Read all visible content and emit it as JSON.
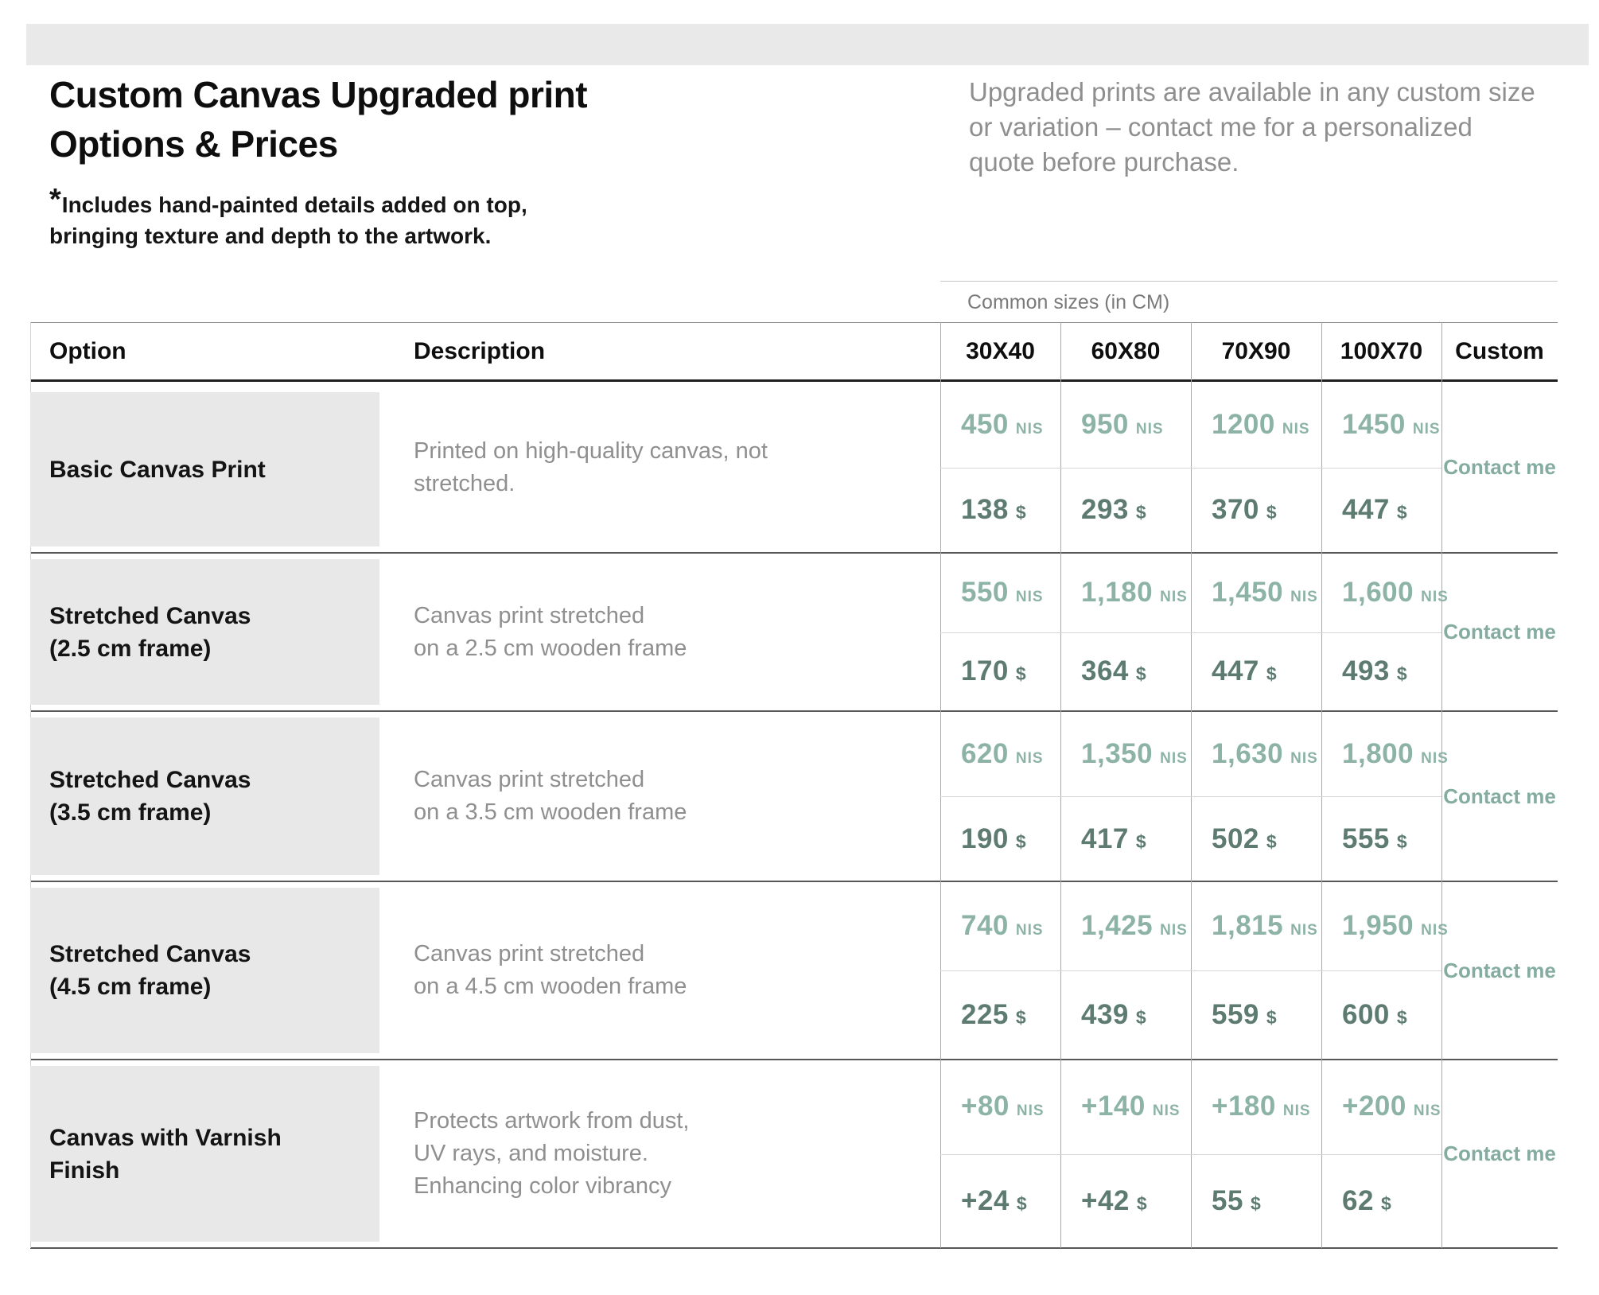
{
  "header": {
    "title_lines": [
      "Custom Canvas Upgraded print",
      "Options & Prices"
    ],
    "note_asterisk": "*",
    "note_lines": [
      "Includes hand-painted details added on top,",
      "bringing texture and depth to the artwork."
    ],
    "intro_lines": [
      "Upgraded prints are available in any custom size",
      "or variation – contact me for a personalized",
      "quote before purchase."
    ]
  },
  "table": {
    "sizes_caption": "Common sizes (in CM)",
    "option_header": "Option",
    "description_header": "Description",
    "size_headers": [
      "30X40",
      "60X80",
      "70X90",
      "100X70"
    ],
    "custom_header": "Custom",
    "currency_primary": "NIS",
    "currency_secondary": "$",
    "contact_label": "Contact me",
    "rows": [
      {
        "option_lines": [
          "Basic Canvas Print"
        ],
        "description_lines": [
          "Printed on high-quality canvas, not",
          "stretched."
        ],
        "prices_nis": [
          "450",
          "950",
          "1200",
          "1450"
        ],
        "prices_usd": [
          "138",
          "293",
          "370",
          "447"
        ]
      },
      {
        "option_lines": [
          "Stretched Canvas",
          "(2.5 cm frame)"
        ],
        "description_lines": [
          "Canvas print stretched",
          "on a 2.5 cm wooden frame"
        ],
        "prices_nis": [
          "550",
          "1,180",
          "1,450",
          "1,600"
        ],
        "prices_usd": [
          "170",
          "364",
          "447",
          "493"
        ]
      },
      {
        "option_lines": [
          "Stretched Canvas",
          "(3.5 cm frame)"
        ],
        "description_lines": [
          "Canvas print stretched",
          "on a 3.5 cm wooden frame"
        ],
        "prices_nis": [
          "620",
          "1,350",
          "1,630",
          "1,800"
        ],
        "prices_usd": [
          "190",
          "417",
          "502",
          "555"
        ]
      },
      {
        "option_lines": [
          "Stretched Canvas",
          "(4.5 cm frame)"
        ],
        "description_lines": [
          "Canvas print stretched",
          "on a 4.5 cm wooden frame"
        ],
        "prices_nis": [
          "740",
          "1,425",
          "1,815",
          "1,950"
        ],
        "prices_usd": [
          "225",
          "439",
          "559",
          "600"
        ]
      },
      {
        "option_lines": [
          "Canvas with Varnish",
          "Finish"
        ],
        "description_lines": [
          "Protects artwork from dust,",
          "UV rays, and moisture.",
          "Enhancing color vibrancy"
        ],
        "prices_nis": [
          "+80",
          "+140",
          "+180",
          "+200"
        ],
        "prices_usd": [
          "+24",
          "+42",
          "55",
          "62"
        ]
      }
    ]
  },
  "colors": {
    "nis_price": "#8cb3a5",
    "usd_price": "#5e7b72",
    "contact": "#84aca0",
    "option_bg": "#e8e8e8",
    "top_bar": "#e9e9e9",
    "muted_text": "#8f8f8f"
  }
}
